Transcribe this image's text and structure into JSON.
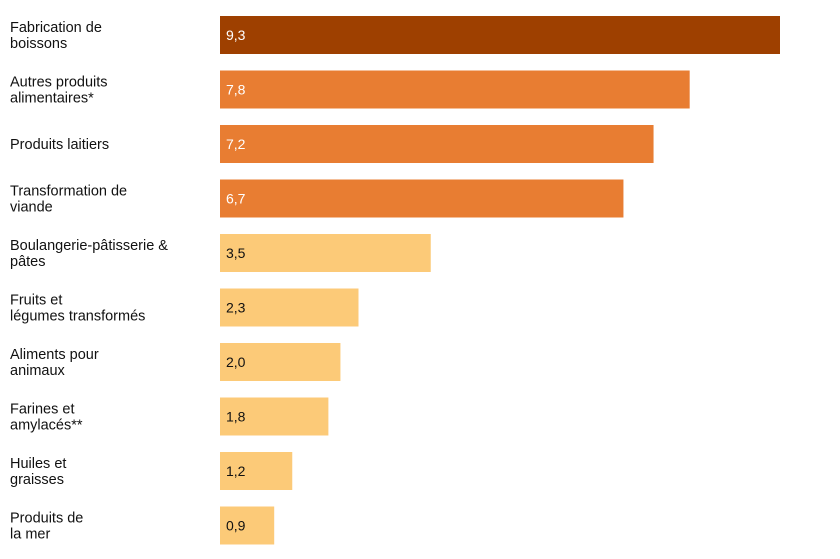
{
  "chart_data": {
    "type": "bar",
    "orientation": "horizontal",
    "title": "",
    "xlabel": "",
    "ylabel": "",
    "xlim": [
      0,
      9.3
    ],
    "grid": false,
    "legend": "none",
    "categories": [
      [
        "Fabrication de",
        "boissons"
      ],
      [
        "Autres produits",
        "alimentaires*"
      ],
      [
        "Produits laitiers"
      ],
      [
        "Transformation de",
        "viande"
      ],
      [
        "Boulangerie-pâtisserie &",
        "pâtes"
      ],
      [
        "Fruits et",
        "légumes transformés"
      ],
      [
        "Aliments pour",
        "animaux"
      ],
      [
        "Farines et",
        "amylacés**"
      ],
      [
        "Huiles et",
        "graisses"
      ],
      [
        "Produits de",
        "la mer"
      ]
    ],
    "values": [
      9.3,
      7.8,
      7.2,
      6.7,
      3.5,
      2.3,
      2.0,
      1.8,
      1.2,
      0.9
    ],
    "value_labels": [
      "9,3",
      "7,8",
      "7,2",
      "6,7",
      "3,5",
      "2,3",
      "2,0",
      "1,8",
      "1,2",
      "0,9"
    ],
    "bar_colors": [
      "#9e4000",
      "#e87d32",
      "#e87d32",
      "#e87d32",
      "#fcca78",
      "#fcca78",
      "#fcca78",
      "#fcca78",
      "#fcca78",
      "#fcca78"
    ],
    "value_label_colors": [
      "#ffffff",
      "#ffffff",
      "#ffffff",
      "#ffffff",
      "#111111",
      "#111111",
      "#111111",
      "#111111",
      "#111111",
      "#111111"
    ]
  }
}
